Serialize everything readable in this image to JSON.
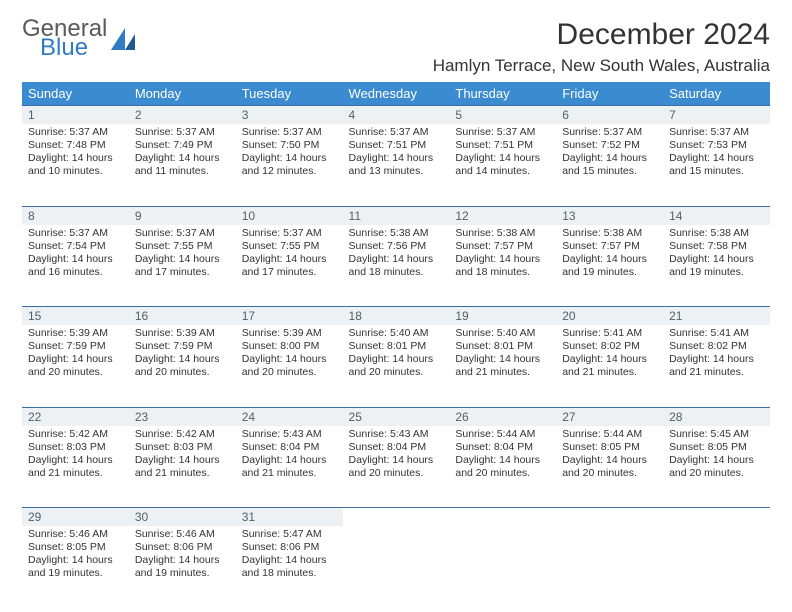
{
  "brand": {
    "general": "General",
    "blue": "Blue"
  },
  "title": "December 2024",
  "location": "Hamlyn Terrace, New South Wales, Australia",
  "colors": {
    "header_bg": "#3b8bd0",
    "header_fg": "#ffffff",
    "rule": "#3b6ea5",
    "daynum_bg": "#eef1f4",
    "daynum_fg": "#52606b",
    "text": "#333333",
    "brand_gray": "#5a5a5a",
    "brand_blue": "#2f7cc0"
  },
  "day_headers": [
    "Sunday",
    "Monday",
    "Tuesday",
    "Wednesday",
    "Thursday",
    "Friday",
    "Saturday"
  ],
  "weeks": [
    [
      {
        "n": "1",
        "sr": "5:37 AM",
        "ss": "7:48 PM",
        "dl": "14 hours and 10 minutes."
      },
      {
        "n": "2",
        "sr": "5:37 AM",
        "ss": "7:49 PM",
        "dl": "14 hours and 11 minutes."
      },
      {
        "n": "3",
        "sr": "5:37 AM",
        "ss": "7:50 PM",
        "dl": "14 hours and 12 minutes."
      },
      {
        "n": "4",
        "sr": "5:37 AM",
        "ss": "7:51 PM",
        "dl": "14 hours and 13 minutes."
      },
      {
        "n": "5",
        "sr": "5:37 AM",
        "ss": "7:51 PM",
        "dl": "14 hours and 14 minutes."
      },
      {
        "n": "6",
        "sr": "5:37 AM",
        "ss": "7:52 PM",
        "dl": "14 hours and 15 minutes."
      },
      {
        "n": "7",
        "sr": "5:37 AM",
        "ss": "7:53 PM",
        "dl": "14 hours and 15 minutes."
      }
    ],
    [
      {
        "n": "8",
        "sr": "5:37 AM",
        "ss": "7:54 PM",
        "dl": "14 hours and 16 minutes."
      },
      {
        "n": "9",
        "sr": "5:37 AM",
        "ss": "7:55 PM",
        "dl": "14 hours and 17 minutes."
      },
      {
        "n": "10",
        "sr": "5:37 AM",
        "ss": "7:55 PM",
        "dl": "14 hours and 17 minutes."
      },
      {
        "n": "11",
        "sr": "5:38 AM",
        "ss": "7:56 PM",
        "dl": "14 hours and 18 minutes."
      },
      {
        "n": "12",
        "sr": "5:38 AM",
        "ss": "7:57 PM",
        "dl": "14 hours and 18 minutes."
      },
      {
        "n": "13",
        "sr": "5:38 AM",
        "ss": "7:57 PM",
        "dl": "14 hours and 19 minutes."
      },
      {
        "n": "14",
        "sr": "5:38 AM",
        "ss": "7:58 PM",
        "dl": "14 hours and 19 minutes."
      }
    ],
    [
      {
        "n": "15",
        "sr": "5:39 AM",
        "ss": "7:59 PM",
        "dl": "14 hours and 20 minutes."
      },
      {
        "n": "16",
        "sr": "5:39 AM",
        "ss": "7:59 PM",
        "dl": "14 hours and 20 minutes."
      },
      {
        "n": "17",
        "sr": "5:39 AM",
        "ss": "8:00 PM",
        "dl": "14 hours and 20 minutes."
      },
      {
        "n": "18",
        "sr": "5:40 AM",
        "ss": "8:01 PM",
        "dl": "14 hours and 20 minutes."
      },
      {
        "n": "19",
        "sr": "5:40 AM",
        "ss": "8:01 PM",
        "dl": "14 hours and 21 minutes."
      },
      {
        "n": "20",
        "sr": "5:41 AM",
        "ss": "8:02 PM",
        "dl": "14 hours and 21 minutes."
      },
      {
        "n": "21",
        "sr": "5:41 AM",
        "ss": "8:02 PM",
        "dl": "14 hours and 21 minutes."
      }
    ],
    [
      {
        "n": "22",
        "sr": "5:42 AM",
        "ss": "8:03 PM",
        "dl": "14 hours and 21 minutes."
      },
      {
        "n": "23",
        "sr": "5:42 AM",
        "ss": "8:03 PM",
        "dl": "14 hours and 21 minutes."
      },
      {
        "n": "24",
        "sr": "5:43 AM",
        "ss": "8:04 PM",
        "dl": "14 hours and 21 minutes."
      },
      {
        "n": "25",
        "sr": "5:43 AM",
        "ss": "8:04 PM",
        "dl": "14 hours and 20 minutes."
      },
      {
        "n": "26",
        "sr": "5:44 AM",
        "ss": "8:04 PM",
        "dl": "14 hours and 20 minutes."
      },
      {
        "n": "27",
        "sr": "5:44 AM",
        "ss": "8:05 PM",
        "dl": "14 hours and 20 minutes."
      },
      {
        "n": "28",
        "sr": "5:45 AM",
        "ss": "8:05 PM",
        "dl": "14 hours and 20 minutes."
      }
    ],
    [
      {
        "n": "29",
        "sr": "5:46 AM",
        "ss": "8:05 PM",
        "dl": "14 hours and 19 minutes."
      },
      {
        "n": "30",
        "sr": "5:46 AM",
        "ss": "8:06 PM",
        "dl": "14 hours and 19 minutes."
      },
      {
        "n": "31",
        "sr": "5:47 AM",
        "ss": "8:06 PM",
        "dl": "14 hours and 18 minutes."
      },
      null,
      null,
      null,
      null
    ]
  ],
  "labels": {
    "sunrise": "Sunrise: ",
    "sunset": "Sunset: ",
    "daylight": "Daylight: "
  }
}
